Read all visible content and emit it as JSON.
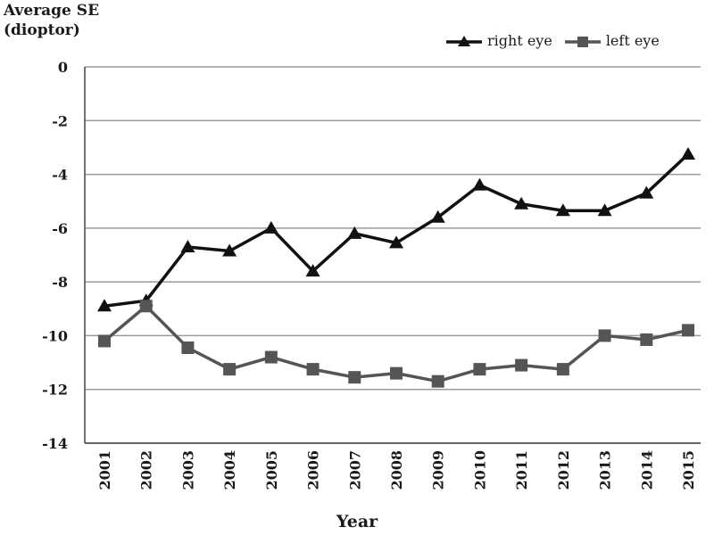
{
  "chart_data": {
    "type": "line",
    "title": "",
    "ylabel_lines": [
      "Average SE",
      "(dioptor)"
    ],
    "xlabel": "Year",
    "categories": [
      "2001",
      "2002",
      "2003",
      "2004",
      "2005",
      "2006",
      "2007",
      "2008",
      "2009",
      "2010",
      "2011",
      "2012",
      "2013",
      "2014",
      "2015"
    ],
    "ylim": [
      -14,
      0
    ],
    "yticks": [
      0,
      -2,
      -4,
      -6,
      -8,
      -10,
      -12,
      -14
    ],
    "grid": true,
    "legend_position": "top-right",
    "series": [
      {
        "name": "right eye",
        "marker": "triangle",
        "color": "#111111",
        "values": [
          -8.9,
          -8.7,
          -6.7,
          -6.85,
          -6.0,
          -7.6,
          -6.2,
          -6.55,
          -5.6,
          -4.4,
          -5.1,
          -5.35,
          -5.35,
          -4.7,
          -3.25
        ]
      },
      {
        "name": "left eye",
        "marker": "square",
        "color": "#555555",
        "values": [
          -10.2,
          -8.9,
          -10.45,
          -11.25,
          -10.8,
          -11.25,
          -11.55,
          -11.4,
          -11.7,
          -11.25,
          -11.1,
          -11.25,
          -10.0,
          -10.15,
          -9.8
        ]
      }
    ]
  }
}
